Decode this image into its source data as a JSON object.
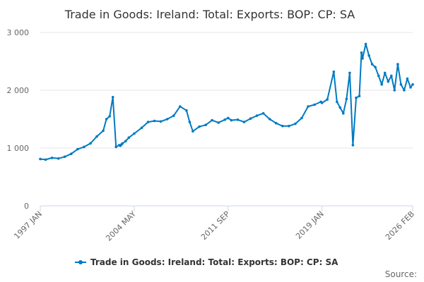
{
  "chart_data": {
    "type": "line",
    "title": "Trade in Goods: Ireland: Total: Exports: BOP: CP: SA",
    "xlabel": "",
    "ylabel": "",
    "ylim": [
      0,
      3000
    ],
    "yticks": [
      0,
      1000,
      2000,
      3000
    ],
    "ytick_labels": [
      "0",
      "1 000",
      "2 000",
      "3 000"
    ],
    "xticks": [
      "1997 JAN",
      "2004 MAY",
      "2011 SEP",
      "2019 JAN",
      "2026 FEB"
    ],
    "grid": true,
    "legend_position": "bottom",
    "source_label": "Source:",
    "colors": {
      "series": "#007ac2",
      "grid": "#e6e6e6",
      "axis": "#ccd6eb"
    },
    "series": [
      {
        "name": "Trade in Goods: Ireland: Total: Exports: BOP: CP: SA",
        "x": [
          "1997 JAN",
          "1997 JUN",
          "1997 DEC",
          "1998 JUN",
          "1998 DEC",
          "1999 JUN",
          "1999 DEC",
          "2000 JUN",
          "2000 DEC",
          "2001 JUN",
          "2001 DEC",
          "2002 MAR",
          "2002 JUN",
          "2002 SEP",
          "2002 DEC",
          "2003 MAR",
          "2003 APR",
          "2003 MAY",
          "2003 JUN",
          "2003 SEP",
          "2003 DEC",
          "2004 MAY",
          "2004 DEC",
          "2005 JUN",
          "2005 DEC",
          "2006 JUN",
          "2006 DEC",
          "2007 JUN",
          "2007 DEC",
          "2008 JUN",
          "2008 SEP",
          "2008 DEC",
          "2009 JUN",
          "2009 DEC",
          "2010 JUN",
          "2010 DEC",
          "2011 JUN",
          "2011 SEP",
          "2011 DEC",
          "2012 JUN",
          "2012 DEC",
          "2013 JUN",
          "2013 DEC",
          "2014 JUN",
          "2014 DEC",
          "2015 JUN",
          "2015 DEC",
          "2016 JUN",
          "2016 DEC",
          "2017 JUN",
          "2017 DEC",
          "2018 JUN",
          "2018 DEC",
          "2019 JAN",
          "2019 JUN",
          "2019 DEC",
          "2020 MAR",
          "2020 JUN",
          "2020 SEP",
          "2020 DEC",
          "2021 MAR",
          "2021 JUN",
          "2021 SEP",
          "2021 DEC",
          "2022 FEB",
          "2022 MAR",
          "2022 JUN",
          "2022 SEP",
          "2022 DEC",
          "2023 MAR",
          "2023 JUN",
          "2023 SEP",
          "2023 DEC",
          "2024 MAR",
          "2024 JUN",
          "2024 SEP",
          "2024 DEC",
          "2025 MAR",
          "2025 JUN",
          "2025 SEP",
          "2025 DEC",
          "2026 FEB"
        ],
        "values": [
          810,
          800,
          830,
          820,
          850,
          900,
          980,
          1020,
          1080,
          1200,
          1300,
          1500,
          1550,
          1880,
          1020,
          1050,
          1040,
          1060,
          1080,
          1120,
          1180,
          1250,
          1350,
          1450,
          1470,
          1460,
          1500,
          1560,
          1720,
          1650,
          1450,
          1290,
          1370,
          1400,
          1480,
          1440,
          1490,
          1520,
          1480,
          1490,
          1450,
          1510,
          1560,
          1600,
          1500,
          1430,
          1380,
          1380,
          1420,
          1520,
          1720,
          1750,
          1800,
          1780,
          1840,
          2320,
          1800,
          1700,
          1600,
          1850,
          2300,
          1050,
          1870,
          1900,
          2650,
          2550,
          2800,
          2600,
          2450,
          2400,
          2250,
          2100,
          2300,
          2150,
          2250,
          2000,
          2450,
          2100,
          2000,
          2200,
          2050,
          2100
        ]
      }
    ]
  }
}
